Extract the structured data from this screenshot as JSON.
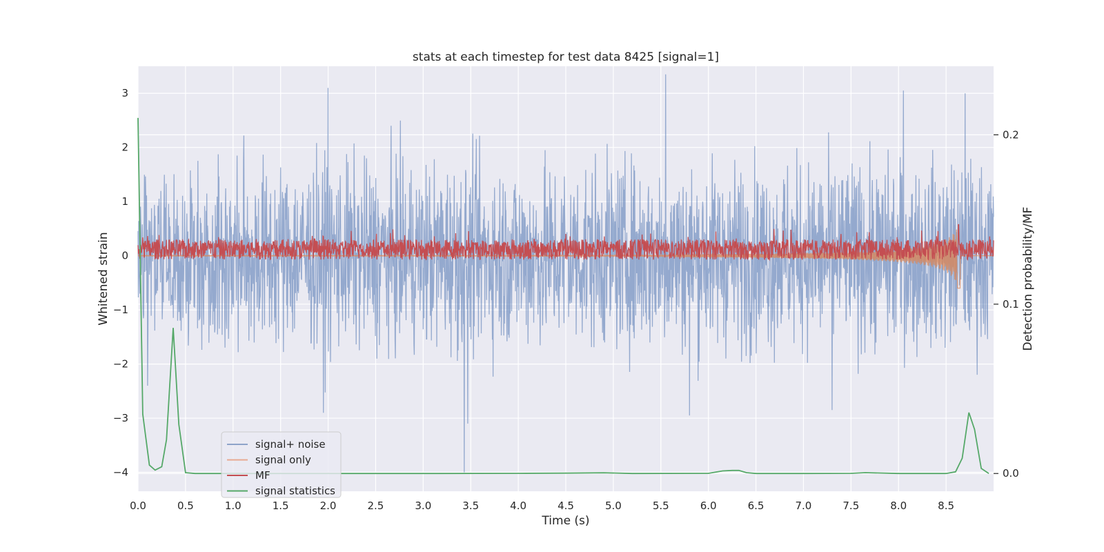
{
  "chart_data": {
    "type": "line",
    "title": "stats at each timestep for test data 8425 [signal=1]",
    "xlabel": "Time (s)",
    "ylabel": "Whitened strain",
    "y2label": "Detection probability/MF",
    "xlim": [
      0.0,
      9.0
    ],
    "ylim": [
      -4.35,
      3.5
    ],
    "y2lim": [
      -0.0105,
      0.2405
    ],
    "xticks": [
      0.0,
      0.5,
      1.0,
      1.5,
      2.0,
      2.5,
      3.0,
      3.5,
      4.0,
      4.5,
      5.0,
      5.5,
      6.0,
      6.5,
      7.0,
      7.5,
      8.0,
      8.5
    ],
    "xtick_labels": [
      "0.0",
      "0.5",
      "1.0",
      "1.5",
      "2.0",
      "2.5",
      "3.0",
      "3.5",
      "4.0",
      "4.5",
      "5.0",
      "5.5",
      "6.0",
      "6.5",
      "7.0",
      "7.5",
      "8.0",
      "8.5"
    ],
    "yticks": [
      -4,
      -3,
      -2,
      -1,
      0,
      1,
      2,
      3
    ],
    "ytick_labels": [
      "−4",
      "−3",
      "−2",
      "−1",
      "0",
      "1",
      "2",
      "3"
    ],
    "y2ticks": [
      0.0,
      0.1,
      0.2
    ],
    "y2tick_labels": [
      "0.0",
      "0.1",
      "0.2"
    ],
    "grid": true,
    "legend_position": "lower-left",
    "series": [
      {
        "name": "signal+ noise",
        "axis": "left",
        "color": "#4c72b0",
        "style": "dense noise, roughly -2 to +2.5 with spikes to about 3.3 and -4",
        "spikes": [
          [
            2.0,
            3.1
          ],
          [
            5.55,
            3.35
          ],
          [
            8.05,
            3.05
          ],
          [
            8.7,
            3.0
          ],
          [
            3.43,
            -4.0
          ],
          [
            3.47,
            -3.1
          ],
          [
            1.95,
            -2.9
          ],
          [
            5.8,
            -2.95
          ],
          [
            7.3,
            -2.85
          ],
          [
            0.1,
            -2.4
          ]
        ]
      },
      {
        "name": "signal only",
        "axis": "left",
        "color": "#dd8452",
        "style": "near zero, growing chirp toward merger",
        "merger_time": 8.65,
        "merger_min": -0.6
      },
      {
        "name": "MF",
        "axis": "right",
        "color": "#c44e52",
        "style": "noisy band roughly 0.12 to 0.14 on the right axis, peak about 0.147 near 8.63 s"
      },
      {
        "name": "signal statistics",
        "axis": "right",
        "color": "#55a868",
        "x": [
          0.0,
          0.05,
          0.12,
          0.18,
          0.25,
          0.3,
          0.37,
          0.43,
          0.5,
          0.6,
          1.0,
          2.0,
          3.0,
          4.0,
          4.5,
          4.9,
          5.2,
          6.0,
          6.15,
          6.25,
          6.32,
          6.4,
          6.5,
          7.0,
          7.5,
          7.65,
          8.0,
          8.5,
          8.6,
          8.67,
          8.74,
          8.8,
          8.87,
          8.95
        ],
        "y": [
          0.21,
          0.035,
          0.005,
          0.002,
          0.004,
          0.02,
          0.086,
          0.029,
          0.0005,
          0.0,
          0.0,
          0.0,
          0.0,
          0.0001,
          0.0002,
          0.0004,
          0.0,
          0.0001,
          0.0015,
          0.0018,
          0.0018,
          0.0005,
          0.0,
          0.0,
          0.0001,
          0.0005,
          0.0,
          0.0,
          0.001,
          0.009,
          0.036,
          0.026,
          0.003,
          0.0
        ]
      }
    ],
    "legend": [
      {
        "label": "signal+ noise",
        "color": "#8ea3c9"
      },
      {
        "label": "signal only",
        "color": "#e8aa92"
      },
      {
        "label": "MF",
        "color": "#c44e52"
      },
      {
        "label": "signal statistics",
        "color": "#55a868"
      }
    ]
  }
}
